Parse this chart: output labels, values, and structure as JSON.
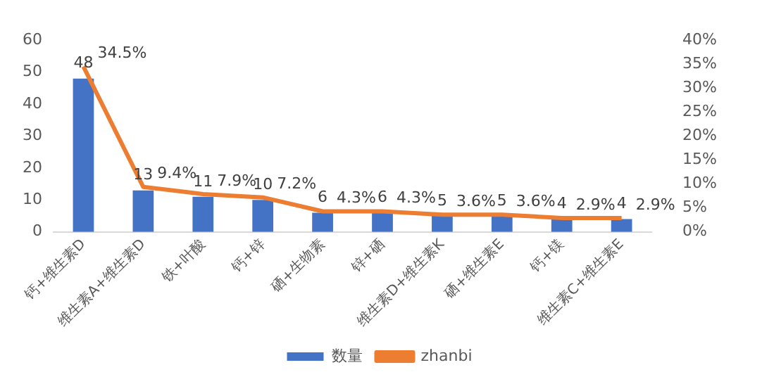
{
  "chart_data": {
    "type": "bar",
    "categories": [
      "钙+维生素D",
      "维生素A+维生素D",
      "铁+叶酸",
      "钙+锌",
      "硒+生物素",
      "锌+硒",
      "维生素D+维生素K",
      "硒+维生素E",
      "钙+镁",
      "维生素C+维生素E"
    ],
    "series": [
      {
        "name": "数量",
        "color": "#4472c4",
        "values": [
          48,
          13,
          11,
          10,
          6,
          6,
          5,
          5,
          4,
          4
        ],
        "value_labels": [
          "48",
          "13",
          "11",
          "10",
          "6",
          "6",
          "5",
          "5",
          "4",
          "4"
        ]
      },
      {
        "name": "zhanbi",
        "type": "line",
        "axis": "y2",
        "color": "#ed7d31",
        "values": [
          34.5,
          9.4,
          7.9,
          7.2,
          4.3,
          4.3,
          3.6,
          3.6,
          2.9,
          2.9
        ],
        "value_labels": [
          "34.5%",
          "9.4%",
          "7.9%",
          "7.2%",
          "4.3%",
          "4.3%",
          "3.6%",
          "3.6%",
          "2.9%",
          "2.9%"
        ]
      }
    ],
    "ylim": [
      0,
      60
    ],
    "yticks": [
      0,
      10,
      20,
      30,
      40,
      50,
      60
    ],
    "y2lim": [
      0,
      40
    ],
    "y2ticks": [
      {
        "value": 0,
        "label": "0%"
      },
      {
        "value": 5,
        "label": "5%"
      },
      {
        "value": 10,
        "label": "10%"
      },
      {
        "value": 15,
        "label": "15%"
      },
      {
        "value": 20,
        "label": "20%"
      },
      {
        "value": 25,
        "label": "25%"
      },
      {
        "value": 30,
        "label": "30%"
      },
      {
        "value": 35,
        "label": "35%"
      },
      {
        "value": 40,
        "label": "40%"
      }
    ],
    "legend": "bottom",
    "grid": false,
    "marker": "none"
  }
}
